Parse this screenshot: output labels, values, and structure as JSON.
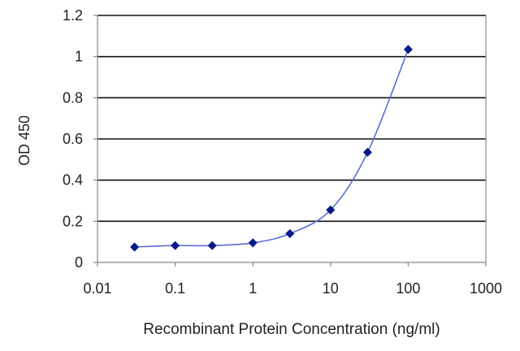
{
  "chart_data": {
    "type": "line",
    "title": "",
    "xlabel": "Recombinant Protein Concentration (ng/ml)",
    "ylabel": "OD 450",
    "x_scale": "log",
    "xlim": [
      0.01,
      1000
    ],
    "ylim": [
      0,
      1.2
    ],
    "x_ticks": [
      "0.01",
      "0.1",
      "1",
      "10",
      "100",
      "1000"
    ],
    "y_ticks": [
      "0",
      "0.2",
      "0.4",
      "0.6",
      "0.8",
      "1",
      "1.2"
    ],
    "grid": "horizontal",
    "legend": "none",
    "series": [
      {
        "x": [
          0.03,
          0.1,
          0.3,
          1,
          3,
          10,
          30,
          100
        ],
        "y": [
          0.075,
          0.082,
          0.082,
          0.095,
          0.14,
          0.255,
          0.535,
          1.035
        ]
      }
    ]
  },
  "colors": {
    "series_line": "#5b6fd6",
    "marker": "#0a1a8c",
    "grid": "#111111",
    "axis": "#888888",
    "text": "#222222"
  }
}
